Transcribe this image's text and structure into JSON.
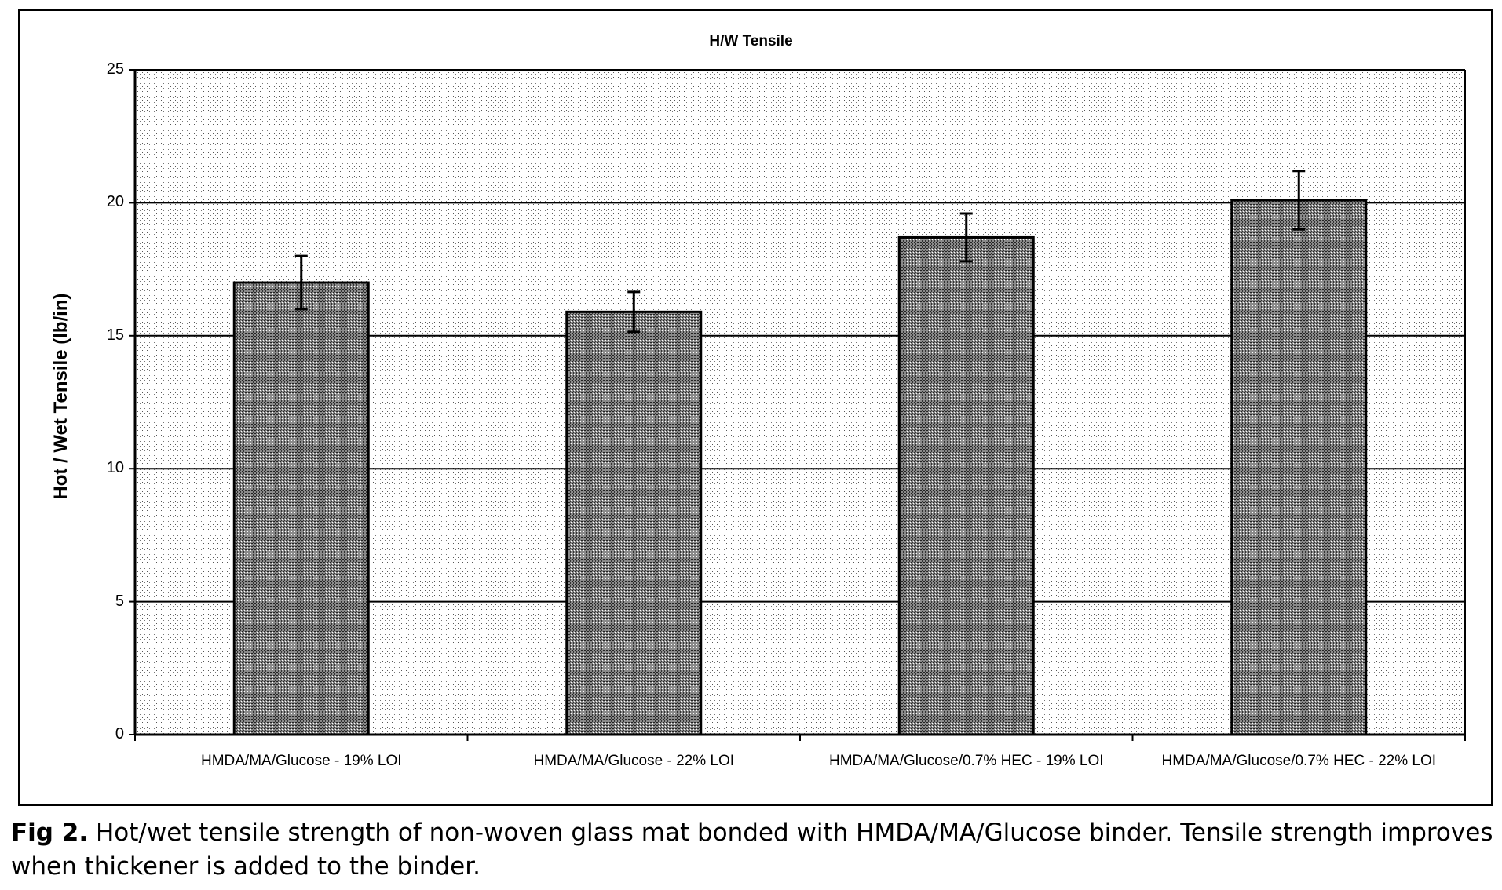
{
  "chart": {
    "title": "H/W Tensile",
    "ylabel": "Hot / Wet Tensile (lb/in)",
    "yticks": [
      "0",
      "5",
      "10",
      "15",
      "20",
      "25"
    ],
    "categories": [
      "HMDA/MA/Glucose - 19% LOI",
      "HMDA/MA/Glucose - 22% LOI",
      "HMDA/MA/Glucose/0.7% HEC - 19% LOI",
      "HMDA/MA/Glucose/0.7% HEC - 22% LOI"
    ]
  },
  "caption": {
    "label": "Fig 2.",
    "text": " Hot/wet tensile strength of non-woven glass mat bonded with HMDA/MA/Glucose binder. Tensile strength improves when thickener is added to the binder."
  },
  "chart_data": {
    "type": "bar",
    "title": "H/W Tensile",
    "xlabel": "",
    "ylabel": "Hot / Wet Tensile (lb/in)",
    "categories": [
      "HMDA/MA/Glucose - 19% LOI",
      "HMDA/MA/Glucose - 22% LOI",
      "HMDA/MA/Glucose/0.7% HEC - 19% LOI",
      "HMDA/MA/Glucose/0.7% HEC - 22% LOI"
    ],
    "values": [
      17.0,
      15.9,
      18.7,
      20.1
    ],
    "error_bars": [
      1.0,
      0.75,
      0.9,
      1.1
    ],
    "ylim": [
      0,
      25
    ],
    "yticks": [
      0,
      5,
      10,
      15,
      20,
      25
    ],
    "grid": "horizontal major gridlines",
    "legend": "none",
    "colors": {
      "bar_fill": "#5a5a5a",
      "background": "#e6e6e6",
      "bar_edge": "#000000"
    }
  }
}
